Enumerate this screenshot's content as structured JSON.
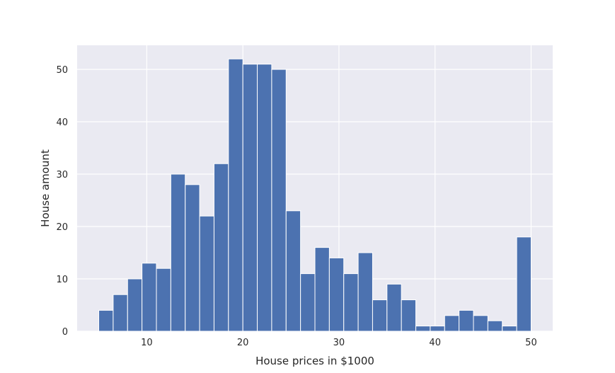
{
  "chart_data": {
    "type": "bar",
    "subtype": "histogram",
    "title": "",
    "xlabel": "House prices in $1000",
    "ylabel": "House amount",
    "xlim": [
      2.75,
      52.25
    ],
    "ylim": [
      0,
      54.6
    ],
    "xticks": [
      10,
      20,
      30,
      40,
      50
    ],
    "yticks": [
      0,
      10,
      20,
      30,
      40,
      50
    ],
    "grid": true,
    "colors": {
      "bar": "#4c72b0",
      "background": "#eaeaf2",
      "grid": "#ffffff",
      "edge": "#ffffff"
    },
    "bins": {
      "start": 5,
      "width": 1.5,
      "counts": [
        4,
        7,
        10,
        13,
        12,
        30,
        28,
        22,
        32,
        52,
        51,
        51,
        50,
        23,
        11,
        16,
        14,
        11,
        15,
        6,
        9,
        6,
        1,
        1,
        3,
        4,
        3,
        2,
        1,
        18
      ]
    }
  }
}
